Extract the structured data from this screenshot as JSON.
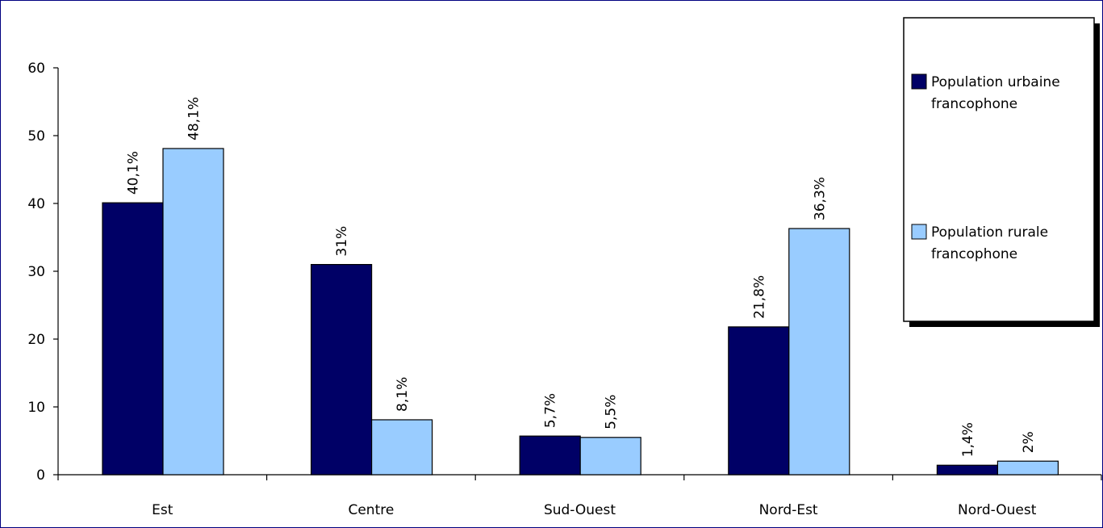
{
  "chart_data": {
    "type": "bar",
    "title": "",
    "xlabel": "",
    "ylabel": "",
    "ylim": [
      0,
      60
    ],
    "yticks": [
      0,
      10,
      20,
      30,
      40,
      50,
      60
    ],
    "grid": false,
    "legend_position": "top-right",
    "categories": [
      "Est",
      "Centre",
      "Sud-Ouest",
      "Nord-Est",
      "Nord-Ouest"
    ],
    "series": [
      {
        "name": "Population urbaine francophone",
        "legend_lines": [
          "Population urbaine",
          "francophone"
        ],
        "color": "#000066",
        "values": [
          40.1,
          31,
          5.7,
          21.8,
          1.4
        ],
        "labels": [
          "40,1%",
          "31%",
          "5,7%",
          "21,8%",
          "1,4%"
        ]
      },
      {
        "name": "Population rurale francophone",
        "legend_lines": [
          "Population rurale",
          "francophone"
        ],
        "color": "#99CCFF",
        "values": [
          48.1,
          8.1,
          5.5,
          36.3,
          2
        ],
        "labels": [
          "48,1%",
          "8,1%",
          "5,5%",
          "36,3%",
          "2%"
        ]
      }
    ]
  }
}
